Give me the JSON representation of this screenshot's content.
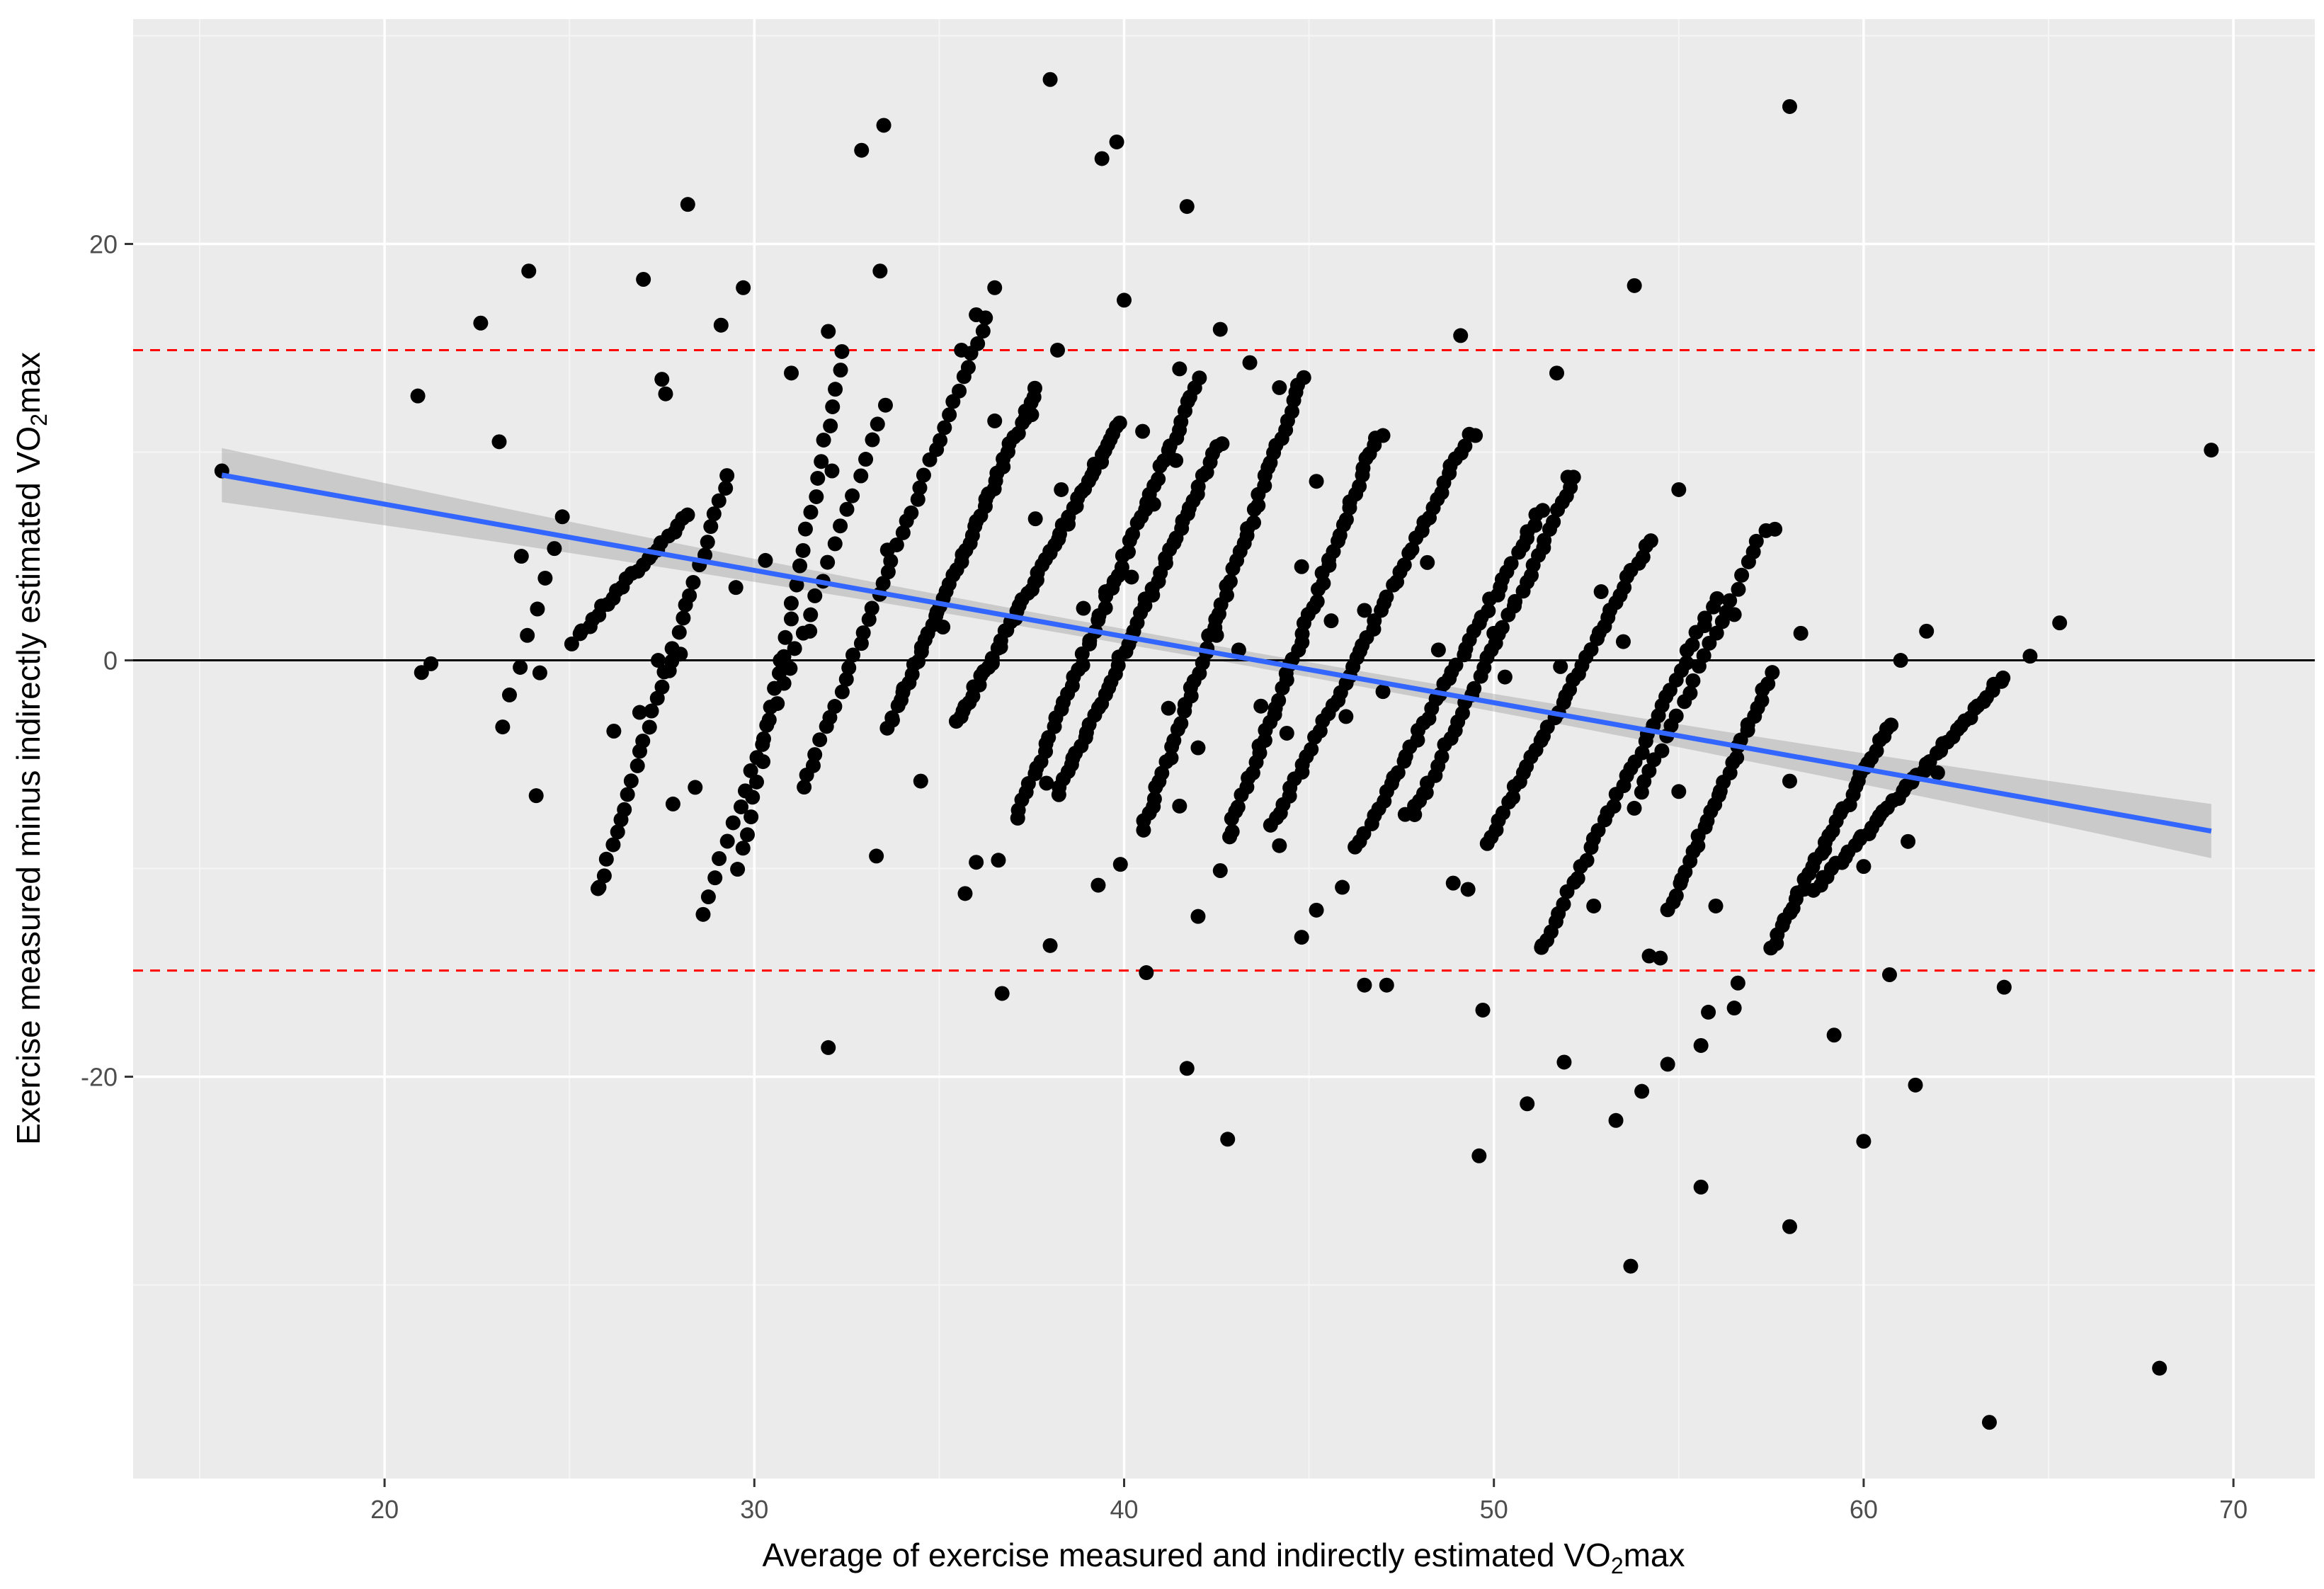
{
  "chart_data": {
    "type": "scatter",
    "title": "",
    "xlabel_parts": [
      "Average of exercise measured and indirectly estimated VO",
      "2",
      "max"
    ],
    "ylabel_parts": [
      "Exercise measured minus indirectly estimated VO",
      "2",
      "max"
    ],
    "xlim": [
      13.2,
      72.2
    ],
    "ylim": [
      -39.3,
      30.8
    ],
    "x_ticks": [
      20,
      30,
      40,
      50,
      60,
      70
    ],
    "y_ticks": [
      -20,
      0,
      20
    ],
    "grid": true,
    "reference_lines": [
      {
        "name": "zero-line",
        "y": 0,
        "color": "#000000",
        "style": "solid"
      },
      {
        "name": "upper-limit-of-agreement",
        "y": 14.9,
        "color": "#ff0000",
        "style": "dashed"
      },
      {
        "name": "lower-limit-of-agreement",
        "y": -14.9,
        "color": "#ff0000",
        "style": "dashed"
      }
    ],
    "regression": {
      "name": "linear-fit",
      "color": "#3366ff",
      "band_color": "#999999",
      "x_start": 15.6,
      "y_start": 8.9,
      "x_end": 69.4,
      "y_end": -8.2,
      "se_start": 1.3,
      "se_mid": 0.35,
      "se_end": 1.3
    },
    "point_color": "#000000",
    "bands": [
      {
        "x0": 21.0,
        "y0": -0.6,
        "x1": 21.3,
        "y1": -0.1,
        "n": 2
      },
      {
        "x0": 23.2,
        "y0": -3.2,
        "x1": 24.8,
        "y1": 6.9,
        "n": 8
      },
      {
        "x0": 25.1,
        "y0": 0.9,
        "x1": 28.2,
        "y1": 7.0,
        "n": 24
      },
      {
        "x0": 25.8,
        "y0": -10.9,
        "x1": 29.3,
        "y1": 9.0,
        "n": 32
      },
      {
        "x0": 28.6,
        "y0": -12.1,
        "x1": 33.5,
        "y1": 12.2,
        "n": 30
      },
      {
        "x0": 29.6,
        "y0": -10.0,
        "x1": 32.4,
        "y1": 14.8,
        "n": 30
      },
      {
        "x0": 31.3,
        "y0": -6.2,
        "x1": 36.3,
        "y1": 16.5,
        "n": 40
      },
      {
        "x0": 33.6,
        "y0": -3.3,
        "x1": 37.6,
        "y1": 13.0,
        "n": 50
      },
      {
        "x0": 35.5,
        "y0": -3.0,
        "x1": 39.9,
        "y1": 11.5,
        "n": 55
      },
      {
        "x0": 37.1,
        "y0": -7.5,
        "x1": 42.0,
        "y1": 13.5,
        "n": 55
      },
      {
        "x0": 38.2,
        "y0": -6.5,
        "x1": 42.6,
        "y1": 10.5,
        "n": 50
      },
      {
        "x0": 40.5,
        "y0": -8.2,
        "x1": 44.8,
        "y1": 13.6,
        "n": 55
      },
      {
        "x0": 42.8,
        "y0": -8.5,
        "x1": 46.8,
        "y1": 10.8,
        "n": 50
      },
      {
        "x0": 44.0,
        "y0": -8.0,
        "x1": 49.3,
        "y1": 10.8,
        "n": 50
      },
      {
        "x0": 46.3,
        "y0": -9.0,
        "x1": 51.3,
        "y1": 7.3,
        "n": 45
      },
      {
        "x0": 47.8,
        "y0": -7.5,
        "x1": 52.2,
        "y1": 8.8,
        "n": 40
      },
      {
        "x0": 49.8,
        "y0": -8.8,
        "x1": 54.2,
        "y1": 5.8,
        "n": 40
      },
      {
        "x0": 51.3,
        "y0": -13.8,
        "x1": 56.0,
        "y1": 3.0,
        "n": 40
      },
      {
        "x0": 54.7,
        "y0": -12.0,
        "x1": 57.5,
        "y1": -0.7,
        "n": 30
      },
      {
        "x0": 53.8,
        "y0": -7.0,
        "x1": 57.3,
        "y1": 6.3,
        "n": 25
      },
      {
        "x0": 57.5,
        "y0": -13.8,
        "x1": 60.7,
        "y1": -3.0,
        "n": 35
      },
      {
        "x0": 58.7,
        "y0": -11.0,
        "x1": 63.8,
        "y1": -0.8,
        "n": 45
      }
    ],
    "points": [
      [
        15.6,
        9.1
      ],
      [
        20.9,
        12.7
      ],
      [
        22.6,
        16.2
      ],
      [
        23.1,
        10.5
      ],
      [
        23.7,
        5.0
      ],
      [
        24.1,
        -6.5
      ],
      [
        23.9,
        18.7
      ],
      [
        27.0,
        18.3
      ],
      [
        28.2,
        21.9
      ],
      [
        29.1,
        16.1
      ],
      [
        29.7,
        17.9
      ],
      [
        25.8,
        -10.9
      ],
      [
        27.5,
        13.5
      ],
      [
        27.6,
        12.8
      ],
      [
        31.0,
        13.8
      ],
      [
        32.0,
        15.8
      ],
      [
        32.9,
        24.5
      ],
      [
        33.5,
        25.7
      ],
      [
        33.4,
        18.7
      ],
      [
        33.3,
        -9.4
      ],
      [
        32.0,
        -18.6
      ],
      [
        36.5,
        17.9
      ],
      [
        36.0,
        16.6
      ],
      [
        35.6,
        14.9
      ],
      [
        38.0,
        27.9
      ],
      [
        38.2,
        14.9
      ],
      [
        39.4,
        24.1
      ],
      [
        39.8,
        24.9
      ],
      [
        40.0,
        17.3
      ],
      [
        41.7,
        21.8
      ],
      [
        42.6,
        15.9
      ],
      [
        43.4,
        14.3
      ],
      [
        44.2,
        13.1
      ],
      [
        40.5,
        11.0
      ],
      [
        41.5,
        14.0
      ],
      [
        36.5,
        11.5
      ],
      [
        37.5,
        11.8
      ],
      [
        36.7,
        -16.0
      ],
      [
        38.0,
        -13.7
      ],
      [
        39.3,
        -10.8
      ],
      [
        40.6,
        -15.0
      ],
      [
        41.7,
        -19.6
      ],
      [
        42.0,
        -12.3
      ],
      [
        42.6,
        -10.1
      ],
      [
        42.8,
        -23.0
      ],
      [
        44.2,
        -8.9
      ],
      [
        44.8,
        -13.3
      ],
      [
        46.5,
        -15.6
      ],
      [
        47.1,
        -15.6
      ],
      [
        45.2,
        -12.0
      ],
      [
        45.9,
        -10.9
      ],
      [
        49.1,
        15.6
      ],
      [
        49.5,
        10.8
      ],
      [
        47.0,
        10.8
      ],
      [
        51.7,
        13.8
      ],
      [
        52.0,
        8.8
      ],
      [
        53.8,
        18.0
      ],
      [
        58.0,
        26.6
      ],
      [
        49.6,
        -23.8
      ],
      [
        49.7,
        -16.8
      ],
      [
        48.9,
        -10.7
      ],
      [
        49.3,
        -11.0
      ],
      [
        50.9,
        -21.3
      ],
      [
        51.3,
        -13.7
      ],
      [
        51.9,
        -19.3
      ],
      [
        53.3,
        -22.1
      ],
      [
        53.7,
        -29.1
      ],
      [
        54.0,
        -20.7
      ],
      [
        54.5,
        -14.3
      ],
      [
        54.7,
        -19.4
      ],
      [
        55.6,
        -25.3
      ],
      [
        55.6,
        -18.5
      ],
      [
        55.8,
        -16.9
      ],
      [
        56.5,
        -16.7
      ],
      [
        56.6,
        -15.5
      ],
      [
        58.0,
        -27.2
      ],
      [
        59.2,
        -18.0
      ],
      [
        60.0,
        -23.1
      ],
      [
        60.7,
        -15.1
      ],
      [
        61.4,
        -20.4
      ],
      [
        63.4,
        -36.6
      ],
      [
        63.8,
        -15.7
      ],
      [
        68.0,
        -34.0
      ],
      [
        69.4,
        10.1
      ],
      [
        65.3,
        1.8
      ],
      [
        64.5,
        0.2
      ],
      [
        61.7,
        1.4
      ],
      [
        61.0,
        0.0
      ],
      [
        58.3,
        1.3
      ],
      [
        56.5,
        2.2
      ],
      [
        57.6,
        6.3
      ],
      [
        55.0,
        8.2
      ],
      [
        52.9,
        3.3
      ],
      [
        50.0,
        1.3
      ],
      [
        48.2,
        4.7
      ],
      [
        45.2,
        8.6
      ],
      [
        44.8,
        4.5
      ],
      [
        40.8,
        7.5
      ],
      [
        41.4,
        9.6
      ],
      [
        38.3,
        8.2
      ],
      [
        35.1,
        1.6
      ],
      [
        37.6,
        6.8
      ],
      [
        27.4,
        0.0
      ],
      [
        28.0,
        0.3
      ],
      [
        27.7,
        -0.5
      ],
      [
        26.2,
        -3.4
      ],
      [
        24.2,
        -0.6
      ],
      [
        26.9,
        -2.5
      ],
      [
        28.4,
        -6.1
      ],
      [
        27.8,
        -6.9
      ],
      [
        33.6,
        5.3
      ],
      [
        32.1,
        9.1
      ],
      [
        30.7,
        0.0
      ],
      [
        31.5,
        1.4
      ],
      [
        29.5,
        3.5
      ],
      [
        30.3,
        4.8
      ],
      [
        34.5,
        -5.8
      ],
      [
        35.7,
        -11.2
      ],
      [
        36.0,
        -9.7
      ],
      [
        36.6,
        -9.6
      ],
      [
        37.9,
        -5.9
      ],
      [
        39.9,
        -9.8
      ],
      [
        41.5,
        -7.0
      ],
      [
        42.0,
        -4.2
      ],
      [
        48.1,
        -6.4
      ],
      [
        47.6,
        -7.4
      ],
      [
        52.7,
        -11.8
      ],
      [
        55.0,
        -6.3
      ],
      [
        56.0,
        -11.8
      ],
      [
        54.2,
        -14.2
      ],
      [
        58.0,
        -5.8
      ],
      [
        61.2,
        -8.7
      ],
      [
        60.0,
        -9.9
      ],
      [
        62.0,
        -5.4
      ],
      [
        43.7,
        -2.2
      ],
      [
        44.4,
        -3.5
      ],
      [
        46.0,
        -2.7
      ],
      [
        47.0,
        -1.5
      ],
      [
        48.5,
        0.5
      ],
      [
        50.3,
        -0.8
      ],
      [
        51.8,
        -0.3
      ],
      [
        53.5,
        0.9
      ],
      [
        40.2,
        4.0
      ],
      [
        38.9,
        2.5
      ],
      [
        39.5,
        3.3
      ],
      [
        42.5,
        1.2
      ],
      [
        43.1,
        0.5
      ],
      [
        41.2,
        -2.3
      ],
      [
        45.6,
        1.9
      ],
      [
        46.5,
        2.4
      ]
    ]
  }
}
